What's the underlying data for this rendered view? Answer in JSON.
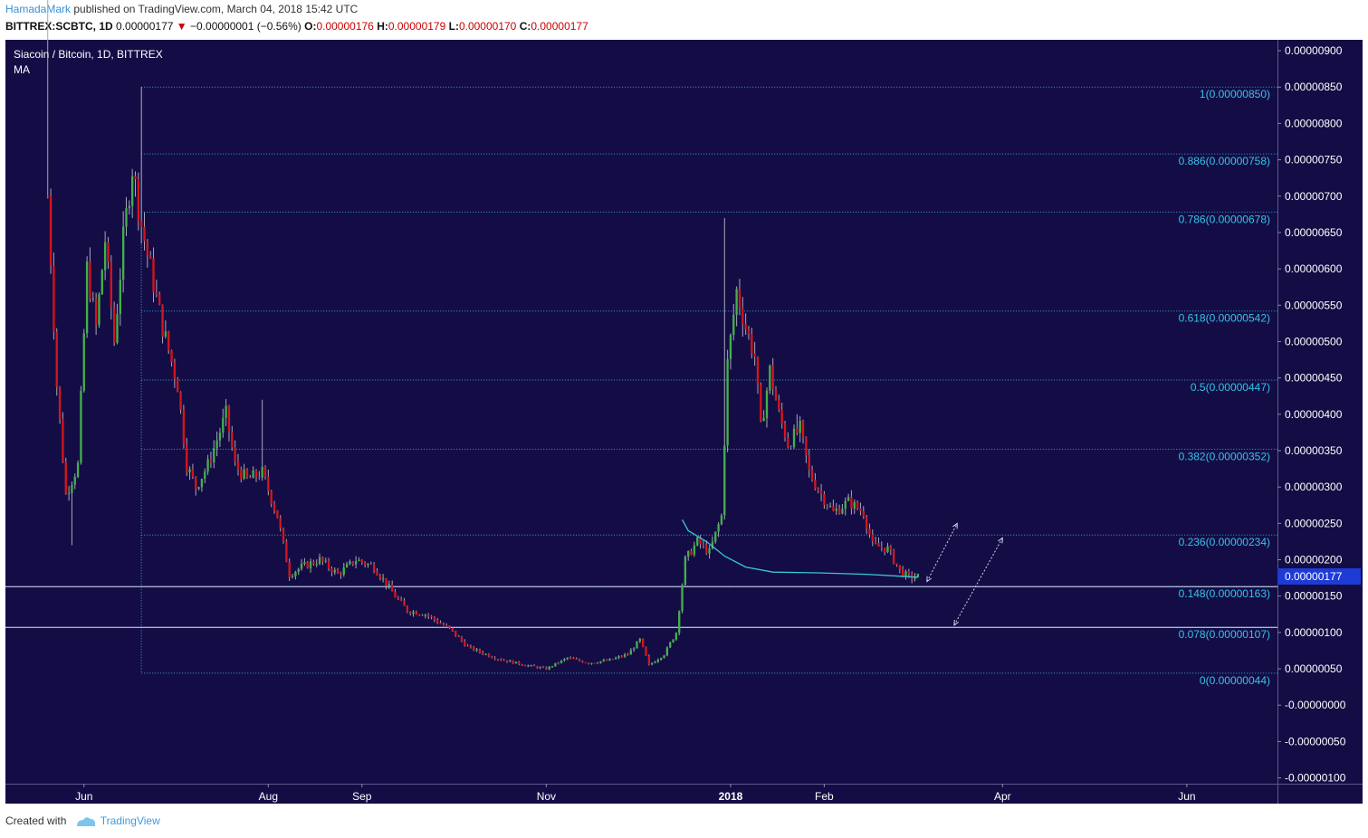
{
  "header": {
    "author": "HamadaMark",
    "published_text": "published on TradingView.com, March 04, 2018 15:42 UTC",
    "symbol": "BITTREX:SCBTC, 1D",
    "last_price": "0.00000177",
    "change_arrow": "▼",
    "change": "−0.00000001 (−0.56%)",
    "open_label": "O:",
    "open": "0.00000176",
    "high_label": "H:",
    "high": "0.00000179",
    "low_label": "L:",
    "low": "0.00000170",
    "close_label": "C:",
    "close": "0.00000177"
  },
  "footer": {
    "created_with": "Created with",
    "brand": "TradingView"
  },
  "colors": {
    "background": "#140d45",
    "grid": "#3b3e8f",
    "up": "#43b049",
    "down": "#d4151b",
    "wick": "#a6a6b8",
    "ma": "#3bc6d6",
    "fib": "#2ea8d8",
    "price_label": "#1e3bd6"
  },
  "chart_data": {
    "type": "candlestick",
    "title": "Siacoin / Bitcoin, 1D, BITTREX",
    "indicator": "MA",
    "current_price_label": "0.00000177",
    "y_ticks": [
      "0.00000900",
      "0.00000850",
      "0.00000800",
      "0.00000750",
      "0.00000700",
      "0.00000650",
      "0.00000600",
      "0.00000550",
      "0.00000500",
      "0.00000450",
      "0.00000400",
      "0.00000350",
      "0.00000300",
      "0.00000250",
      "0.00000200",
      "0.00000150",
      "0.00000100",
      "0.00000050",
      "-0.00000000",
      "-0.00000050",
      "-0.00000100"
    ],
    "ylim": [
      -1.08e-06,
      9.15e-06
    ],
    "x_labels": [
      {
        "label": "Jun",
        "date": "2017-06-01"
      },
      {
        "label": "Aug",
        "date": "2017-08-01"
      },
      {
        "label": "Sep",
        "date": "2017-09-01"
      },
      {
        "label": "Nov",
        "date": "2017-11-01"
      },
      {
        "label": "2018",
        "date": "2018-01-01",
        "bold": true
      },
      {
        "label": "Feb",
        "date": "2018-02-01"
      },
      {
        "label": "Apr",
        "date": "2018-04-01"
      },
      {
        "label": "Jun",
        "date": "2018-06-01"
      }
    ],
    "xlim": [
      "2017-05-06",
      "2018-07-01"
    ],
    "price_path": [
      [
        "2017-05-20",
        700
      ],
      [
        "2017-05-23",
        440
      ],
      [
        "2017-05-26",
        290
      ],
      [
        "2017-05-30",
        330
      ],
      [
        "2017-06-02",
        600
      ],
      [
        "2017-06-05",
        520
      ],
      [
        "2017-06-08",
        640
      ],
      [
        "2017-06-11",
        500
      ],
      [
        "2017-06-14",
        640
      ],
      [
        "2017-06-17",
        740
      ],
      [
        "2017-06-20",
        660
      ],
      [
        "2017-06-23",
        600
      ],
      [
        "2017-06-27",
        520
      ],
      [
        "2017-07-02",
        440
      ],
      [
        "2017-07-05",
        330
      ],
      [
        "2017-07-08",
        300
      ],
      [
        "2017-07-12",
        330
      ],
      [
        "2017-07-18",
        400
      ],
      [
        "2017-07-21",
        330
      ],
      [
        "2017-07-25",
        310
      ],
      [
        "2017-07-30",
        320
      ],
      [
        "2017-08-04",
        260
      ],
      [
        "2017-08-08",
        180
      ],
      [
        "2017-08-12",
        190
      ],
      [
        "2017-08-18",
        200
      ],
      [
        "2017-08-24",
        180
      ],
      [
        "2017-08-30",
        200
      ],
      [
        "2017-09-05",
        190
      ],
      [
        "2017-09-12",
        150
      ],
      [
        "2017-09-16",
        130
      ],
      [
        "2017-09-22",
        125
      ],
      [
        "2017-09-30",
        105
      ],
      [
        "2017-10-06",
        80
      ],
      [
        "2017-10-15",
        65
      ],
      [
        "2017-10-25",
        55
      ],
      [
        "2017-11-01",
        50
      ],
      [
        "2017-11-08",
        65
      ],
      [
        "2017-11-15",
        58
      ],
      [
        "2017-11-22",
        62
      ],
      [
        "2017-11-28",
        70
      ],
      [
        "2017-12-02",
        90
      ],
      [
        "2017-12-05",
        55
      ],
      [
        "2017-12-10",
        70
      ],
      [
        "2017-12-14",
        100
      ],
      [
        "2017-12-17",
        200
      ],
      [
        "2017-12-21",
        225
      ],
      [
        "2017-12-25",
        210
      ],
      [
        "2017-12-29",
        260
      ],
      [
        "2017-12-31",
        470
      ],
      [
        "2018-01-03",
        570
      ],
      [
        "2018-01-06",
        520
      ],
      [
        "2018-01-09",
        480
      ],
      [
        "2018-01-11",
        380
      ],
      [
        "2018-01-14",
        460
      ],
      [
        "2018-01-17",
        400
      ],
      [
        "2018-01-20",
        360
      ],
      [
        "2018-01-24",
        380
      ],
      [
        "2018-01-27",
        320
      ],
      [
        "2018-01-31",
        290
      ],
      [
        "2018-02-04",
        265
      ],
      [
        "2018-02-09",
        280
      ],
      [
        "2018-02-14",
        265
      ],
      [
        "2018-02-17",
        220
      ],
      [
        "2018-02-22",
        215
      ],
      [
        "2018-02-26",
        185
      ],
      [
        "2018-03-01",
        176
      ],
      [
        "2018-03-04",
        177
      ]
    ],
    "spikes": [
      {
        "date": "2017-05-20",
        "high": 970
      },
      {
        "date": "2017-05-28",
        "low": 220
      },
      {
        "date": "2017-06-20",
        "high": 850
      },
      {
        "date": "2017-07-30",
        "high": 420
      },
      {
        "date": "2017-12-30",
        "high": 670
      },
      {
        "date": "2018-01-23",
        "high": 400
      }
    ],
    "ma": [
      [
        "2017-12-16",
        255
      ],
      [
        "2017-12-18",
        240
      ],
      [
        "2017-12-24",
        225
      ],
      [
        "2017-12-30",
        205
      ],
      [
        "2018-01-06",
        190
      ],
      [
        "2018-01-15",
        183
      ],
      [
        "2018-01-30",
        182
      ],
      [
        "2018-02-15",
        180
      ],
      [
        "2018-03-04",
        176
      ]
    ],
    "fibonacci": {
      "start_date": "2017-06-20",
      "levels": [
        {
          "ratio": "1",
          "value": 8.5e-06,
          "label": "1(0.00000850)"
        },
        {
          "ratio": "0.886",
          "value": 7.58e-06,
          "label": "0.886(0.00000758)"
        },
        {
          "ratio": "0.786",
          "value": 6.78e-06,
          "label": "0.786(0.00000678)"
        },
        {
          "ratio": "0.618",
          "value": 5.42e-06,
          "label": "0.618(0.00000542)"
        },
        {
          "ratio": "0.5",
          "value": 4.47e-06,
          "label": "0.5(0.00000447)"
        },
        {
          "ratio": "0.382",
          "value": 3.52e-06,
          "label": "0.382(0.00000352)"
        },
        {
          "ratio": "0.236",
          "value": 2.34e-06,
          "label": "0.236(0.00000234)"
        },
        {
          "ratio": "0.148",
          "value": 1.63e-06,
          "label": "0.148(0.00000163)"
        },
        {
          "ratio": "0.078",
          "value": 1.07e-06,
          "label": "0.078(0.00000107)"
        },
        {
          "ratio": "0",
          "value": 4.4e-07,
          "label": "0(0.00000044)"
        }
      ]
    },
    "horizontal_lines": [
      1.63e-06,
      1.07e-06
    ],
    "arrows": [
      {
        "from": [
          "2018-03-07",
          1.7e-06
        ],
        "to": [
          "2018-03-17",
          2.5e-06
        ]
      },
      {
        "from": [
          "2018-03-16",
          1.1e-06
        ],
        "to": [
          "2018-04-01",
          2.3e-06
        ]
      }
    ]
  }
}
